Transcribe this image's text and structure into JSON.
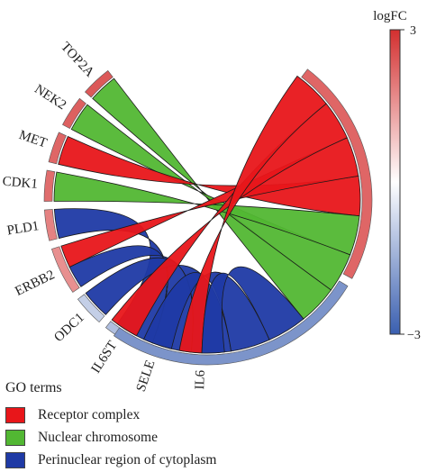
{
  "colors": {
    "receptor": "#e8161a",
    "nuclear": "#52b733",
    "perinuclear": "#1f3aa5",
    "scale_high": "#d32f2f",
    "scale_mid": "#ffffff",
    "scale_low": "#3a5fb0"
  },
  "genes": [
    {
      "name": "TOP2A",
      "logfc": 2.4
    },
    {
      "name": "NEK2",
      "logfc": 2.3
    },
    {
      "name": "MET",
      "logfc": 2.2
    },
    {
      "name": "CDK1",
      "logfc": 2.1
    },
    {
      "name": "PLD1",
      "logfc": 1.8
    },
    {
      "name": "ERBB2",
      "logfc": 1.6
    },
    {
      "name": "ODC1",
      "logfc": -0.9
    },
    {
      "name": "IL6ST",
      "logfc": -1.2
    },
    {
      "name": "SELE",
      "logfc": -1.7
    },
    {
      "name": "IL6",
      "logfc": -2.1
    }
  ],
  "terms": [
    {
      "key": "receptor",
      "label": "Receptor complex"
    },
    {
      "key": "nuclear",
      "label": "Nuclear chromosome"
    },
    {
      "key": "perinuclear",
      "label": "Perinuclear region of cytoplasm"
    }
  ],
  "links": [
    {
      "gene": "TOP2A",
      "term": "nuclear"
    },
    {
      "gene": "NEK2",
      "term": "nuclear"
    },
    {
      "gene": "MET",
      "term": "receptor"
    },
    {
      "gene": "CDK1",
      "term": "nuclear"
    },
    {
      "gene": "PLD1",
      "term": "perinuclear"
    },
    {
      "gene": "ERBB2",
      "term": "receptor"
    },
    {
      "gene": "ERBB2",
      "term": "perinuclear"
    },
    {
      "gene": "ODC1",
      "term": "perinuclear"
    },
    {
      "gene": "IL6ST",
      "term": "receptor"
    },
    {
      "gene": "SELE",
      "term": "perinuclear"
    },
    {
      "gene": "IL6",
      "term": "receptor"
    },
    {
      "gene": "IL6",
      "term": "perinuclear"
    }
  ],
  "colorbar": {
    "title": "logFC",
    "max_label": "3",
    "min_label": "−3",
    "max": 3,
    "min": -3
  },
  "legend": {
    "title": "GO terms"
  }
}
